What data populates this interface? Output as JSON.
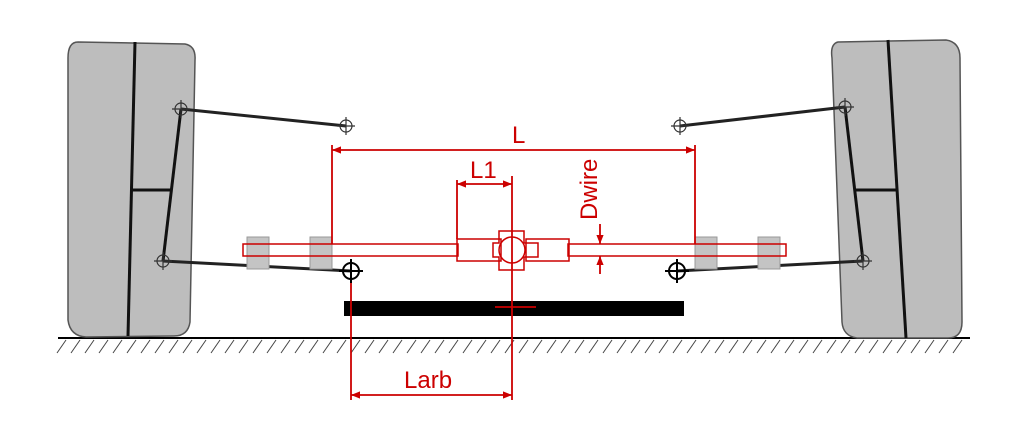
{
  "labels": {
    "L": "L",
    "L1": "L1",
    "dwire": "Dwire",
    "larb": "Larb"
  },
  "colors": {
    "dimension": "#cc0000",
    "tire_fill": "#bdbdbd",
    "link": "#222222",
    "ground": "#000000",
    "bar": "#000000",
    "bushing": "#c4c4c4"
  }
}
